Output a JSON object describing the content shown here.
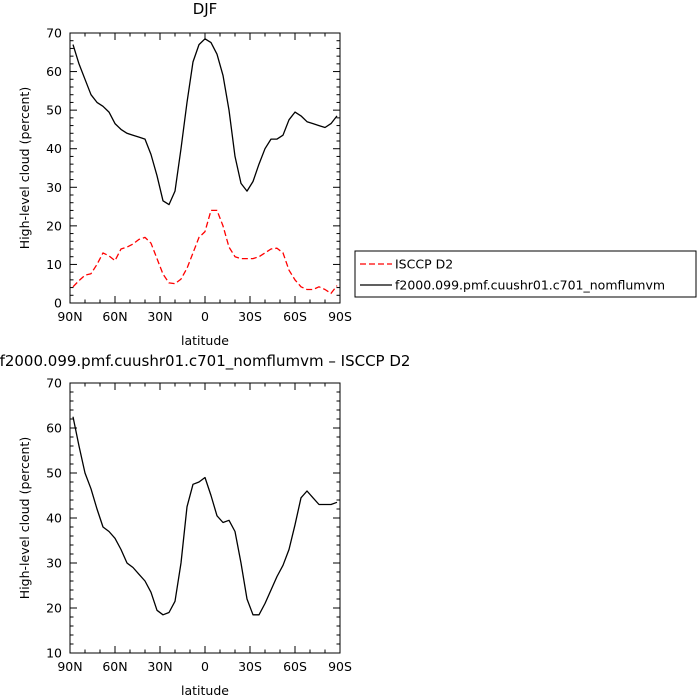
{
  "chart_data": [
    {
      "type": "line",
      "title": "DJF",
      "xlabel": "latitude",
      "ylabel": "High-level cloud  (percent)",
      "xlim": [
        90,
        -90
      ],
      "ylim": [
        0,
        70
      ],
      "xticks": [
        {
          "value": 90,
          "label": "90N"
        },
        {
          "value": 60,
          "label": "60N"
        },
        {
          "value": 30,
          "label": "30N"
        },
        {
          "value": 0,
          "label": "0"
        },
        {
          "value": -30,
          "label": "30S"
        },
        {
          "value": -60,
          "label": "60S"
        },
        {
          "value": -90,
          "label": "90S"
        }
      ],
      "yticks": [
        0,
        10,
        20,
        30,
        40,
        50,
        60,
        70
      ],
      "legend_position": "right",
      "series": [
        {
          "name": "ISCCP D2",
          "color": "#ff0000",
          "dash": "dashed",
          "x": [
            88,
            84,
            80,
            76,
            72,
            68,
            64,
            60,
            56,
            52,
            48,
            44,
            40,
            36,
            32,
            28,
            24,
            20,
            16,
            12,
            8,
            4,
            0,
            -4,
            -8,
            -12,
            -16,
            -20,
            -24,
            -28,
            -32,
            -36,
            -40,
            -44,
            -48,
            -52,
            -56,
            -60,
            -64,
            -68,
            -72,
            -76,
            -80,
            -84,
            -88
          ],
          "y": [
            4.2,
            5.8,
            7.2,
            7.6,
            10.0,
            13.0,
            12.2,
            11.0,
            14.0,
            14.5,
            15.3,
            16.5,
            17.0,
            15.5,
            11.5,
            7.5,
            5.2,
            5.0,
            6.2,
            9.0,
            13.0,
            17.0,
            18.5,
            24.0,
            24.0,
            20.0,
            14.5,
            12.0,
            11.5,
            11.5,
            11.5,
            12.0,
            13.0,
            14.0,
            14.2,
            13.0,
            8.5,
            6.0,
            4.2,
            3.5,
            3.5,
            4.2,
            3.5,
            2.5,
            4.5
          ]
        },
        {
          "name": "f2000.099.pmf.cuushr01.c701_nomflumvm",
          "color": "#000000",
          "dash": "solid",
          "x": [
            88,
            84,
            80,
            76,
            72,
            68,
            64,
            60,
            56,
            52,
            48,
            44,
            40,
            36,
            32,
            28,
            24,
            20,
            16,
            12,
            8,
            4,
            0,
            -4,
            -8,
            -12,
            -16,
            -20,
            -24,
            -28,
            -32,
            -36,
            -40,
            -44,
            -48,
            -52,
            -56,
            -60,
            -64,
            -68,
            -72,
            -76,
            -80,
            -84,
            -88
          ],
          "y": [
            67.0,
            62.0,
            58.0,
            54.0,
            52.0,
            51.0,
            49.5,
            46.5,
            45.0,
            44.0,
            43.5,
            43.0,
            42.5,
            38.5,
            33.0,
            26.5,
            25.5,
            29.0,
            40.0,
            52.0,
            62.5,
            67.0,
            68.5,
            67.5,
            64.5,
            59.0,
            50.0,
            38.0,
            31.0,
            29.0,
            31.5,
            36.0,
            40.0,
            42.5,
            42.5,
            43.5,
            47.5,
            49.5,
            48.5,
            47.0,
            46.5,
            46.0,
            45.5,
            46.5,
            48.5
          ]
        }
      ]
    },
    {
      "type": "line",
      "title": "f2000.099.pmf.cuushr01.c701_nomflumvm  –  ISCCP D2",
      "xlabel": "latitude",
      "ylabel": "High-level cloud  (percent)",
      "xlim": [
        90,
        -90
      ],
      "ylim": [
        10,
        70
      ],
      "xticks": [
        {
          "value": 90,
          "label": "90N"
        },
        {
          "value": 60,
          "label": "60N"
        },
        {
          "value": 30,
          "label": "30N"
        },
        {
          "value": 0,
          "label": "0"
        },
        {
          "value": -30,
          "label": "30S"
        },
        {
          "value": -60,
          "label": "60S"
        },
        {
          "value": -90,
          "label": "90S"
        }
      ],
      "yticks": [
        10,
        20,
        30,
        40,
        50,
        60,
        70
      ],
      "series": [
        {
          "color": "#000000",
          "dash": "solid",
          "x": [
            88,
            84,
            80,
            76,
            72,
            68,
            64,
            60,
            56,
            52,
            48,
            44,
            40,
            36,
            32,
            28,
            24,
            20,
            16,
            12,
            8,
            4,
            0,
            -4,
            -8,
            -12,
            -16,
            -20,
            -24,
            -28,
            -32,
            -36,
            -40,
            -44,
            -48,
            -52,
            -56,
            -60,
            -64,
            -68,
            -72,
            -76,
            -80,
            -84,
            -88
          ],
          "y": [
            62.5,
            56.0,
            50.0,
            46.5,
            42.0,
            38.0,
            37.0,
            35.5,
            33.0,
            30.0,
            29.0,
            27.5,
            26.0,
            23.5,
            19.5,
            18.5,
            19.0,
            21.5,
            30.0,
            42.5,
            47.5,
            48.0,
            49.0,
            45.0,
            40.5,
            39.0,
            39.5,
            37.0,
            30.0,
            22.0,
            18.5,
            18.5,
            21.0,
            24.0,
            27.0,
            29.5,
            33.0,
            38.5,
            44.5,
            46.0,
            44.5,
            43.0,
            43.0,
            43.0,
            43.5
          ]
        }
      ]
    }
  ]
}
